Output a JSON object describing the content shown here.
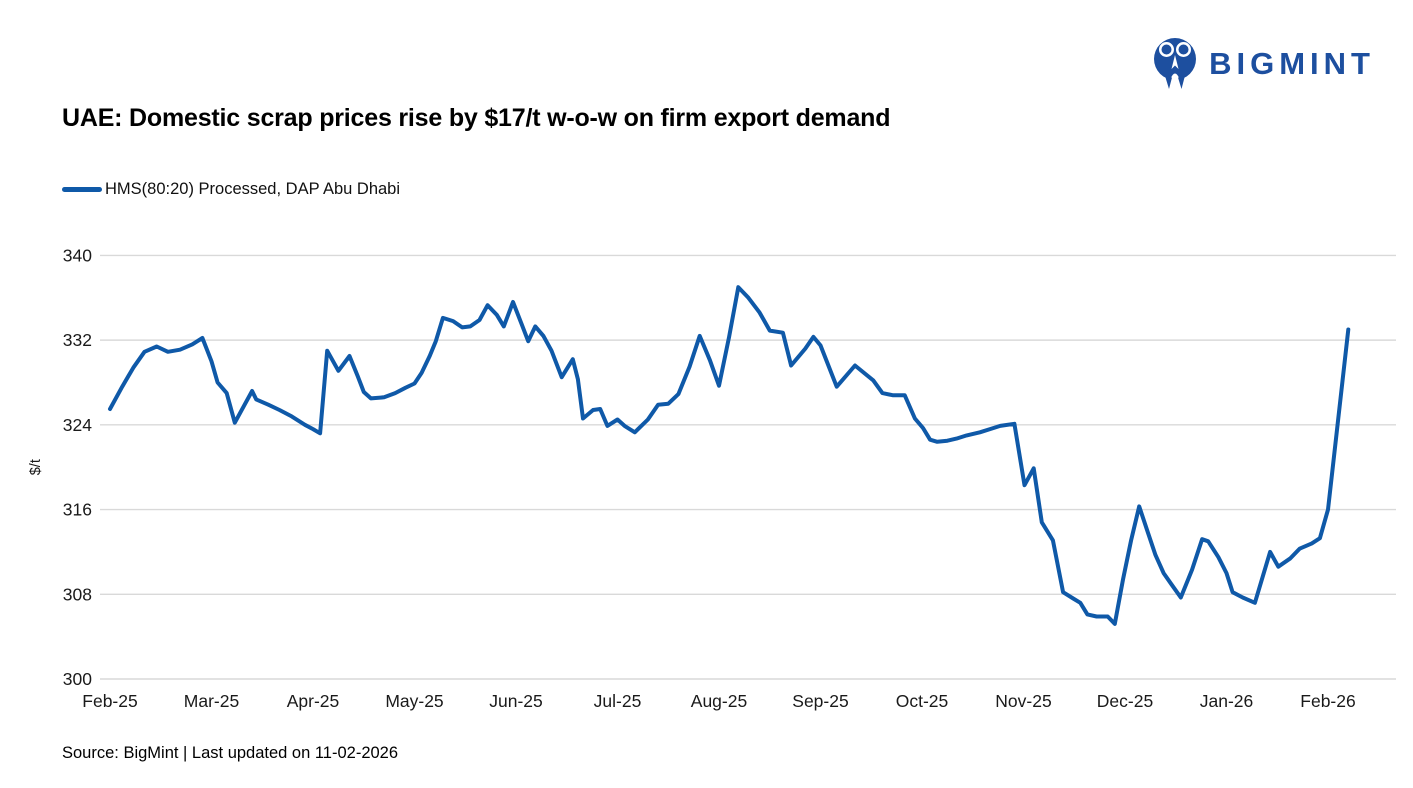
{
  "logo": {
    "brand": "BIGMINT"
  },
  "header": {
    "title": "UAE: Domestic scrap prices rise by $17/t w-o-w on firm export demand"
  },
  "legend": {
    "label": "HMS(80:20) Processed, DAP Abu Dhabi"
  },
  "footer": {
    "source": "Source: BigMint | Last updated on 11-02-2026"
  },
  "colors": {
    "line_blue": "#0f59a8",
    "logo_blue": "#1d4f9f",
    "gridline": "#d9d9d9",
    "tick_text": "#1a1a1a"
  },
  "chart_data": {
    "type": "line",
    "title": "UAE: Domestic scrap prices rise by $17/t w-o-w on firm export demand",
    "xlabel": "",
    "ylabel": "$/t",
    "ylim": [
      300,
      340
    ],
    "y_ticks": [
      300,
      308,
      316,
      324,
      332,
      340
    ],
    "x_tick_labels": [
      "Feb-25",
      "Mar-25",
      "Apr-25",
      "May-25",
      "Jun-25",
      "Jul-25",
      "Aug-25",
      "Sep-25",
      "Oct-25",
      "Nov-25",
      "Dec-25",
      "Jan-26",
      "Feb-26"
    ],
    "x_unit": "months since Feb-25",
    "x_range": [
      0,
      12.2
    ],
    "grid": "horizontal-only",
    "legend_position": "top-left",
    "series": [
      {
        "name": "HMS(80:20) Processed, DAP Abu Dhabi",
        "color": "#0f59a8",
        "points": [
          [
            0.0,
            325.5
          ],
          [
            0.12,
            327.6
          ],
          [
            0.23,
            329.4
          ],
          [
            0.34,
            330.9
          ],
          [
            0.46,
            331.4
          ],
          [
            0.57,
            330.9
          ],
          [
            0.69,
            331.1
          ],
          [
            0.81,
            331.6
          ],
          [
            0.91,
            332.2
          ],
          [
            1.0,
            330.0
          ],
          [
            1.06,
            328.0
          ],
          [
            1.15,
            327.0
          ],
          [
            1.23,
            324.2
          ],
          [
            1.32,
            325.8
          ],
          [
            1.4,
            327.2
          ],
          [
            1.44,
            326.4
          ],
          [
            1.56,
            325.9
          ],
          [
            1.67,
            325.4
          ],
          [
            1.79,
            324.8
          ],
          [
            1.92,
            324.0
          ],
          [
            2.0,
            323.6
          ],
          [
            2.07,
            323.2
          ],
          [
            2.14,
            331.0
          ],
          [
            2.25,
            329.1
          ],
          [
            2.36,
            330.5
          ],
          [
            2.44,
            328.6
          ],
          [
            2.5,
            327.1
          ],
          [
            2.57,
            326.5
          ],
          [
            2.7,
            326.6
          ],
          [
            2.81,
            327.0
          ],
          [
            2.91,
            327.5
          ],
          [
            3.0,
            327.9
          ],
          [
            3.07,
            328.9
          ],
          [
            3.15,
            330.5
          ],
          [
            3.21,
            331.9
          ],
          [
            3.28,
            334.1
          ],
          [
            3.38,
            333.8
          ],
          [
            3.47,
            333.2
          ],
          [
            3.55,
            333.3
          ],
          [
            3.64,
            333.9
          ],
          [
            3.72,
            335.3
          ],
          [
            3.81,
            334.4
          ],
          [
            3.88,
            333.3
          ],
          [
            3.97,
            335.6
          ],
          [
            4.06,
            333.4
          ],
          [
            4.12,
            331.9
          ],
          [
            4.19,
            333.3
          ],
          [
            4.27,
            332.4
          ],
          [
            4.35,
            331.0
          ],
          [
            4.45,
            328.5
          ],
          [
            4.56,
            330.2
          ],
          [
            4.61,
            328.3
          ],
          [
            4.66,
            324.6
          ],
          [
            4.76,
            325.4
          ],
          [
            4.83,
            325.5
          ],
          [
            4.9,
            323.9
          ],
          [
            5.0,
            324.5
          ],
          [
            5.07,
            323.9
          ],
          [
            5.17,
            323.3
          ],
          [
            5.3,
            324.5
          ],
          [
            5.4,
            325.9
          ],
          [
            5.5,
            326.0
          ],
          [
            5.6,
            326.9
          ],
          [
            5.71,
            329.5
          ],
          [
            5.81,
            332.4
          ],
          [
            5.91,
            330.1
          ],
          [
            6.0,
            327.7
          ],
          [
            6.1,
            332.3
          ],
          [
            6.19,
            337.0
          ],
          [
            6.29,
            336.0
          ],
          [
            6.4,
            334.6
          ],
          [
            6.5,
            332.9
          ],
          [
            6.63,
            332.7
          ],
          [
            6.71,
            329.6
          ],
          [
            6.85,
            331.2
          ],
          [
            6.93,
            332.3
          ],
          [
            7.0,
            331.5
          ],
          [
            7.16,
            327.6
          ],
          [
            7.34,
            329.6
          ],
          [
            7.52,
            328.2
          ],
          [
            7.61,
            327.0
          ],
          [
            7.71,
            326.8
          ],
          [
            7.83,
            326.8
          ],
          [
            7.93,
            324.6
          ],
          [
            8.01,
            323.7
          ],
          [
            8.08,
            322.6
          ],
          [
            8.15,
            322.4
          ],
          [
            8.25,
            322.5
          ],
          [
            8.34,
            322.7
          ],
          [
            8.44,
            323.0
          ],
          [
            8.57,
            323.3
          ],
          [
            8.67,
            323.6
          ],
          [
            8.77,
            323.9
          ],
          [
            8.91,
            324.1
          ],
          [
            9.01,
            318.3
          ],
          [
            9.1,
            319.9
          ],
          [
            9.18,
            314.8
          ],
          [
            9.29,
            313.1
          ],
          [
            9.39,
            308.2
          ],
          [
            9.49,
            307.6
          ],
          [
            9.56,
            307.2
          ],
          [
            9.63,
            306.1
          ],
          [
            9.72,
            305.9
          ],
          [
            9.83,
            305.9
          ],
          [
            9.9,
            305.2
          ],
          [
            9.98,
            309.4
          ],
          [
            10.06,
            313.1
          ],
          [
            10.14,
            316.3
          ],
          [
            10.22,
            314.0
          ],
          [
            10.3,
            311.7
          ],
          [
            10.38,
            310.0
          ],
          [
            10.46,
            308.9
          ],
          [
            10.55,
            307.7
          ],
          [
            10.66,
            310.3
          ],
          [
            10.76,
            313.2
          ],
          [
            10.82,
            313.0
          ],
          [
            10.92,
            311.5
          ],
          [
            11.0,
            310.0
          ],
          [
            11.06,
            308.2
          ],
          [
            11.16,
            307.7
          ],
          [
            11.28,
            307.2
          ],
          [
            11.43,
            312.0
          ],
          [
            11.51,
            310.6
          ],
          [
            11.63,
            311.4
          ],
          [
            11.72,
            312.3
          ],
          [
            11.84,
            312.8
          ],
          [
            11.92,
            313.3
          ],
          [
            12.0,
            316.0
          ],
          [
            12.2,
            333.0
          ]
        ]
      }
    ]
  }
}
